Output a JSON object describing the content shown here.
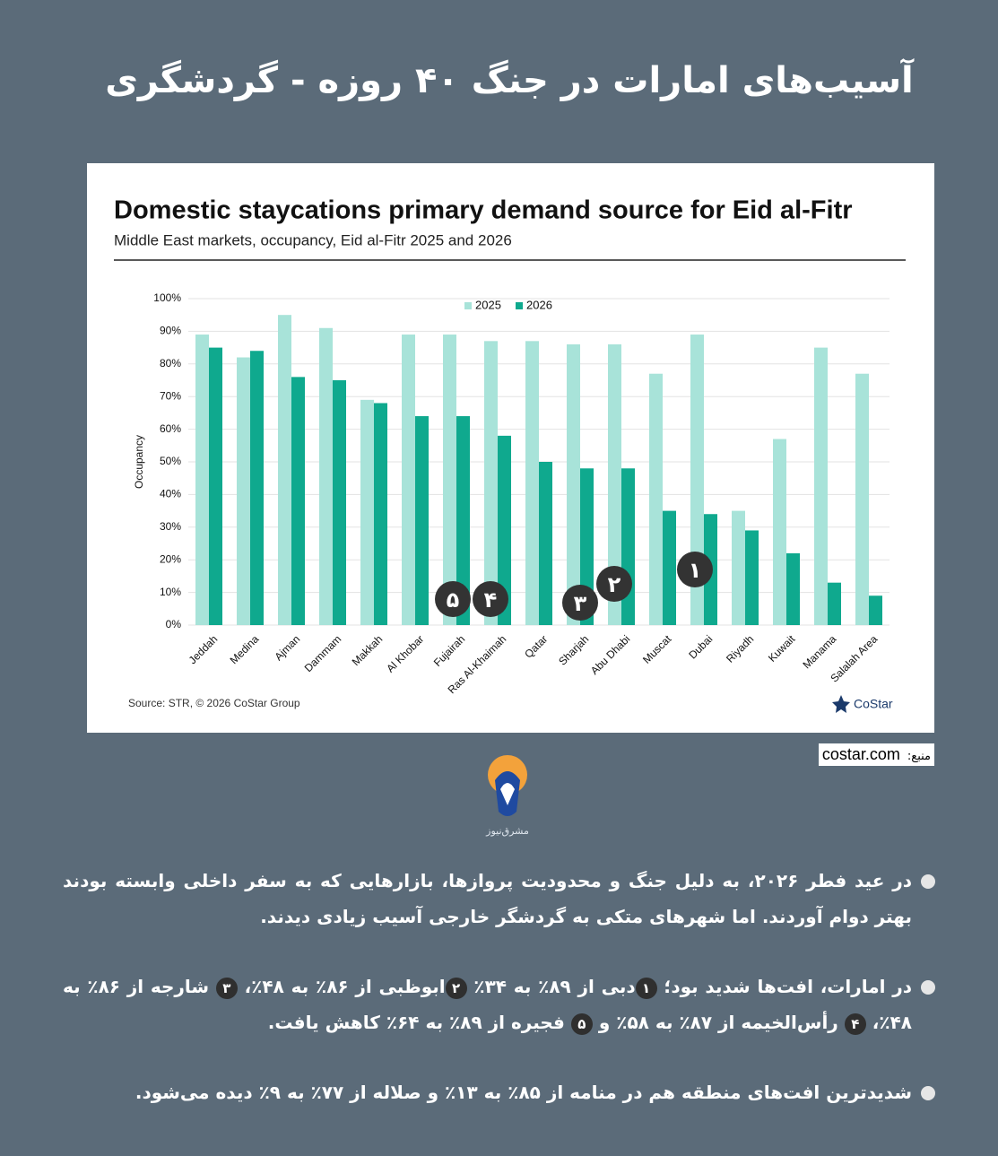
{
  "header": {
    "title": "آسیب‌های امارات در جنگ ۴۰ روزه - گردشگری"
  },
  "chart_data": {
    "type": "bar",
    "title": "Domestic staycations primary demand source for Eid al-Fitr",
    "subtitle": "Middle East markets, occupancy, Eid al-Fitr 2025 and 2026",
    "y_label": "Occupancy",
    "categories": [
      "Jeddah",
      "Medina",
      "Ajman",
      "Dammam",
      "Makkah",
      "Al Khobar",
      "Fujairah",
      "Ras Al-Khaimah",
      "Qatar",
      "Sharjah",
      "Abu Dhabi",
      "Muscat",
      "Dubai",
      "Riyadh",
      "Kuwait",
      "Manama",
      "Salalah Area"
    ],
    "series": [
      {
        "name": "2025",
        "color": "#a8e3d9",
        "values": [
          89,
          82,
          95,
          91,
          69,
          89,
          89,
          87,
          87,
          86,
          86,
          77,
          89,
          35,
          57,
          85,
          77
        ]
      },
      {
        "name": "2026",
        "color": "#0fa98e",
        "values": [
          85,
          84,
          76,
          75,
          68,
          64,
          64,
          58,
          50,
          48,
          48,
          35,
          34,
          29,
          22,
          13,
          9
        ]
      }
    ],
    "ylim": [
      0,
      100
    ],
    "yticks": [
      {
        "value": 0,
        "label": "0%"
      },
      {
        "value": 10,
        "label": "10%"
      },
      {
        "value": 20,
        "label": "20%"
      },
      {
        "value": 30,
        "label": "30%"
      },
      {
        "value": 40,
        "label": "40%"
      },
      {
        "value": 50,
        "label": "50%"
      },
      {
        "value": 60,
        "label": "60%"
      },
      {
        "value": 70,
        "label": "70%"
      },
      {
        "value": 80,
        "label": "80%"
      },
      {
        "value": 90,
        "label": "90%"
      },
      {
        "value": 100,
        "label": "100%"
      }
    ],
    "grid": true,
    "legend": "top",
    "annotations": [
      {
        "label": "۵",
        "category": "Fujairah"
      },
      {
        "label": "۴",
        "category": "Ras Al-Khaimah"
      },
      {
        "label": "۳",
        "category": "Sharjah"
      },
      {
        "label": "۲",
        "category": "Abu Dhabi"
      },
      {
        "label": "۱",
        "category": "Dubai"
      }
    ],
    "source": "Source: STR, © 2026 CoStar Group",
    "brand": "CoStar"
  },
  "source_label": "منبع:",
  "source_site": "costar.com",
  "logo_text": "مشرق‌نیوز",
  "bullets": [
    [
      {
        "text": "در عید فطر ۲۰۲۶، به دلیل جنگ و محدودیت پروازها، بازارهایی که به سفر داخلی وابسته بودند بهتر دوام آوردند. اما شهرهای متکی به گردشگر خارجی آسیب زیادی دیدند."
      }
    ],
    [
      {
        "text": "در امارات، افت‌ها شدید بود؛ "
      },
      {
        "badge": "۱"
      },
      {
        "text": "دبی از ۸۹٪ به ۳۴٪ "
      },
      {
        "badge": "۲"
      },
      {
        "text": "ابوظبی از ۸۶٪ به ۴۸٪، "
      },
      {
        "badge": "۳"
      },
      {
        "text": " شارجه از ۸۶٪ به ۴۸٪، "
      },
      {
        "badge": "۴"
      },
      {
        "text": " رأس‌الخیمه از ۸۷٪ به ۵۸٪ و "
      },
      {
        "badge": "۵"
      },
      {
        "text": " فجیره از ۸۹٪ به ۶۴٪ کاهش یافت."
      }
    ],
    [
      {
        "text": "شدیدترین افت‌های منطقه هم در منامه از ۸۵٪ به ۱۳٪ و صلاله از ۷۷٪ به ۹٪ دیده می‌شود."
      }
    ]
  ]
}
